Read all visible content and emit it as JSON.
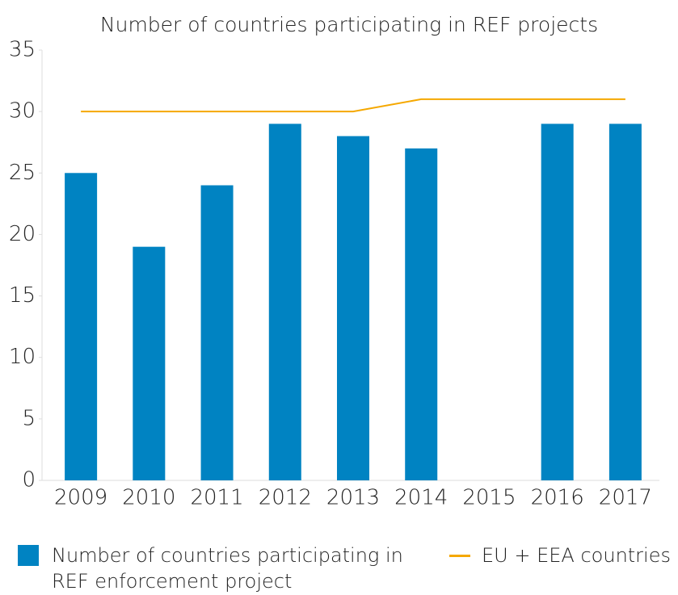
{
  "chart_data": {
    "type": "bar",
    "title": "Number of countries participating in REF projects",
    "categories": [
      "2009",
      "2010",
      "2011",
      "2012",
      "2013",
      "2014",
      "2015",
      "2016",
      "2017"
    ],
    "series": [
      {
        "name": "Number of countries participating in REF enforcement project",
        "type": "bar",
        "color": "#0083c2",
        "values": [
          25,
          19,
          24,
          29,
          28,
          27,
          null,
          29,
          29
        ]
      },
      {
        "name": "EU + EEA countries",
        "type": "line",
        "color": "#f5a800",
        "values": [
          30,
          30,
          30,
          30,
          30,
          31,
          31,
          31,
          31
        ]
      }
    ],
    "ylim": [
      0,
      35
    ],
    "yticks": [
      0,
      5,
      10,
      15,
      20,
      25,
      30,
      35
    ]
  }
}
